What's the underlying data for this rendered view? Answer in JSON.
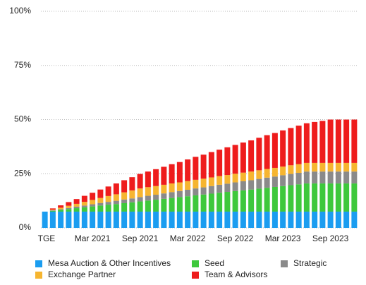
{
  "chart_data": {
    "type": "stacked-bar",
    "categories": [
      "TGE",
      null,
      null,
      null,
      null,
      null,
      "Mar 2021",
      null,
      null,
      null,
      null,
      null,
      "Sep 2021",
      null,
      null,
      null,
      null,
      null,
      "Mar 2022",
      null,
      null,
      null,
      null,
      null,
      "Sep 2022",
      null,
      null,
      null,
      null,
      null,
      "Mar 2023",
      null,
      null,
      null,
      null,
      null,
      "Sep 2023",
      null,
      null,
      null
    ],
    "series": [
      {
        "name": "Mesa Auction & Other Incentives",
        "color": "#1b9df0",
        "values": [
          7.5,
          7.5,
          7.5,
          7.5,
          7.5,
          7.5,
          7.5,
          7.5,
          7.5,
          7.5,
          7.5,
          7.5,
          7.5,
          7.5,
          7.5,
          7.5,
          7.5,
          7.5,
          7.5,
          7.5,
          7.5,
          7.5,
          7.5,
          7.5,
          7.5,
          7.5,
          7.5,
          7.5,
          7.5,
          7.5,
          7.5,
          7.5,
          7.5,
          7.5,
          7.5,
          7.5,
          7.5,
          7.5,
          7.5,
          7.5
        ]
      },
      {
        "name": "Seed",
        "color": "#3ec83c",
        "values": [
          0,
          0.4,
          0.8,
          1.2,
          1.6,
          2.0,
          2.4,
          2.8,
          3.2,
          3.5,
          3.9,
          4.3,
          4.7,
          5.1,
          5.5,
          5.9,
          6.3,
          6.7,
          7.1,
          7.5,
          7.9,
          8.3,
          8.7,
          9.1,
          9.5,
          9.8,
          10.2,
          10.6,
          11.0,
          11.4,
          11.8,
          12.2,
          12.6,
          13,
          13,
          13,
          13,
          13,
          13,
          13
        ]
      },
      {
        "name": "Strategic",
        "color": "#8a8a8a",
        "values": [
          0,
          0.2,
          0.3,
          0.5,
          0.7,
          0.8,
          1.0,
          1.2,
          1.3,
          1.5,
          1.7,
          1.8,
          2.0,
          2.2,
          2.3,
          2.5,
          2.7,
          2.8,
          3.0,
          3.2,
          3.3,
          3.5,
          3.7,
          3.8,
          4.0,
          4.2,
          4.3,
          4.5,
          4.7,
          4.8,
          5.0,
          5.2,
          5.3,
          5.5,
          5.5,
          5.5,
          5.5,
          5.5,
          5.5,
          5.5
        ]
      },
      {
        "name": "Exchange Partner",
        "color": "#f6b530",
        "values": [
          0,
          0.3,
          0.7,
          1.0,
          1.3,
          1.7,
          2.0,
          2.3,
          2.7,
          3.0,
          3.3,
          3.7,
          4,
          4,
          4,
          4,
          4,
          4,
          4,
          4,
          4,
          4,
          4,
          4,
          4,
          4,
          4,
          4,
          4,
          4,
          4,
          4,
          4,
          4,
          4,
          4,
          4,
          4,
          4,
          4
        ]
      },
      {
        "name": "Team & Advisors",
        "color": "#ee1c1c",
        "values": [
          0,
          0.6,
          1.1,
          1.7,
          2.2,
          2.8,
          3.3,
          3.9,
          4.4,
          5.0,
          5.6,
          6.1,
          6.7,
          7.2,
          7.8,
          8.3,
          8.9,
          9.4,
          10.0,
          10.6,
          11.1,
          11.7,
          12.2,
          12.8,
          13.3,
          13.9,
          14.4,
          15.0,
          15.6,
          16.1,
          16.7,
          17.2,
          17.8,
          18.3,
          18.9,
          19.4,
          20,
          20,
          20,
          20
        ]
      }
    ],
    "ylim": [
      0,
      100
    ],
    "yticks": [
      {
        "value": 0,
        "label": "0%"
      },
      {
        "value": 25,
        "label": "25%"
      },
      {
        "value": 50,
        "label": "50%"
      },
      {
        "value": 75,
        "label": "75%"
      },
      {
        "value": 100,
        "label": "100%"
      }
    ],
    "grid": true
  }
}
